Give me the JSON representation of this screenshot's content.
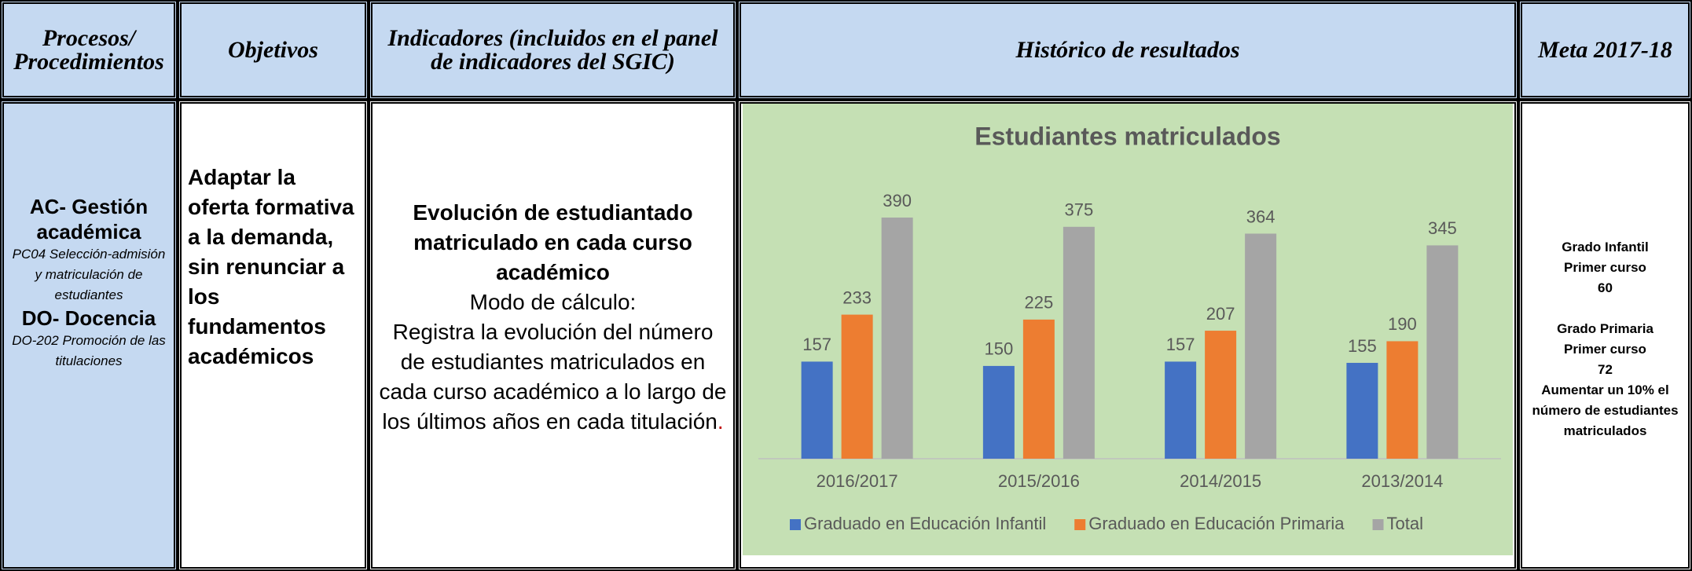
{
  "table": {
    "header": [
      "Procesos/ Procedimientos",
      "Objetivos",
      "Indicadores (incluidos en el panel de indicadores del SGIC)",
      "Histórico de resultados",
      "Meta 2017-18"
    ],
    "process": {
      "ac_title": "AC- Gestión académica",
      "ac_detail": "PC04 Selección-admisión y matriculación de estudiantes",
      "do_title": "DO- Docencia",
      "do_detail": "DO-202 Promoción de las titulaciones"
    },
    "objective": "Adaptar la oferta formativa a la demanda, sin renunciar a los fundamentos académicos",
    "indicator": {
      "title": "Evolución de estudiantado matriculado en cada curso académico",
      "method_label": "Modo de cálculo:",
      "description": "Registra la evolución del número de estudiantes matriculados en cada curso académico a lo largo de los últimos años en cada titulación",
      "description_end": "."
    },
    "goal": [
      "Grado Infantil",
      "Primer curso",
      "60",
      "Grado Primaria",
      "Primer curso",
      "72",
      "Aumentar un 10% el número de estudiantes matriculados"
    ]
  },
  "chart": {
    "type": "bar",
    "title": "Estudiantes matriculados",
    "categories": [
      "2016/2017",
      "2015/2016",
      "2014/2015",
      "2013/2014"
    ],
    "series": [
      {
        "name": "Graduado en Educación Infantil",
        "color": "#4472c4",
        "values": [
          157,
          150,
          157,
          155
        ]
      },
      {
        "name": "Graduado en Educación Primaria",
        "color": "#ed7d31",
        "values": [
          233,
          225,
          207,
          190
        ]
      },
      {
        "name": "Total",
        "color": "#a5a5a5",
        "values": [
          390,
          375,
          364,
          345
        ]
      }
    ],
    "legend": "bottom",
    "background": "#c5e0b4"
  }
}
